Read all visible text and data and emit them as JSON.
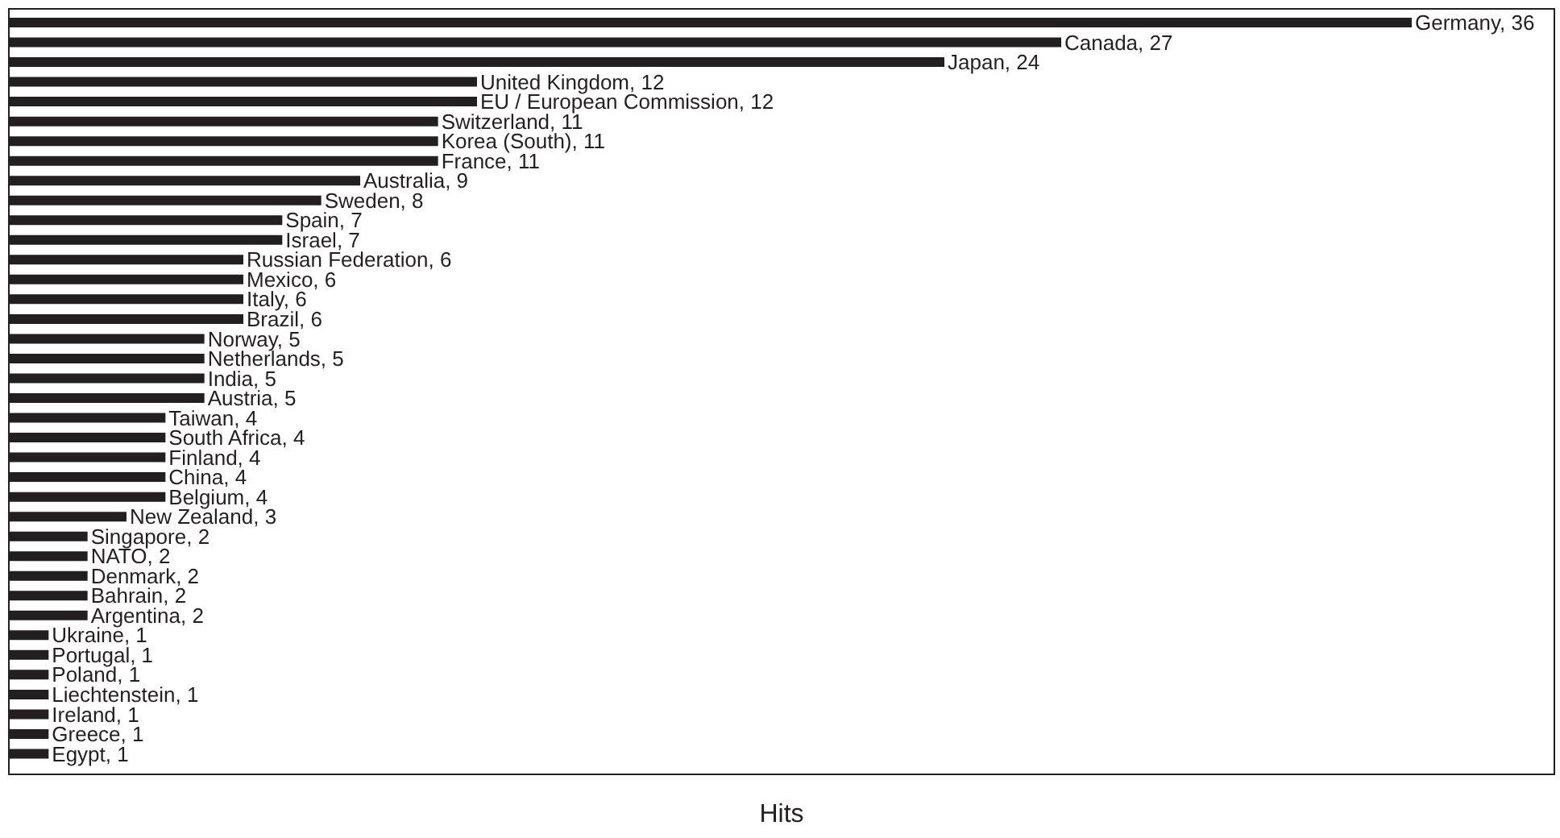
{
  "chart_data": {
    "type": "bar",
    "orientation": "horizontal",
    "xlabel": "Hits",
    "tick_labels": false,
    "categories": [
      null,
      null,
      null,
      null,
      null,
      null,
      null,
      null,
      null,
      null,
      null,
      null,
      null,
      null,
      null,
      null,
      null,
      null,
      null,
      null,
      null,
      null,
      null,
      null,
      null,
      null,
      null,
      null,
      null,
      null,
      null,
      null,
      null,
      null,
      null,
      null,
      null,
      null
    ],
    "values": [
      36,
      27,
      24,
      12,
      12,
      11,
      11,
      11,
      9,
      8,
      7,
      7,
      6,
      6,
      6,
      6,
      5,
      5,
      5,
      5,
      4,
      4,
      4,
      4,
      4,
      3,
      2,
      2,
      2,
      2,
      2,
      1,
      1,
      1,
      1,
      1,
      1,
      1
    ],
    "value_labels": [
      "Germany, 36",
      "Canada, 27",
      "Japan, 24",
      "United Kingdom, 12",
      "EU / European Commission, 12",
      "Switzerland, 11",
      "Korea (South), 11",
      "France, 11",
      "Australia, 9",
      "Sweden, 8",
      "Spain, 7",
      "Israel, 7",
      "Russian Federation, 6",
      "Mexico, 6",
      "Italy, 6",
      "Brazil, 6",
      "Norway, 5",
      "Netherlands, 5",
      "India, 5",
      "Austria, 5",
      "Taiwan, 4",
      "South Africa, 4",
      "Finland, 4",
      "China, 4",
      "Belgium, 4",
      "New Zealand, 3",
      "Singapore, 2",
      "NATO, 2",
      "Denmark, 2",
      "Bahrain, 2",
      "Argentina, 2",
      "Ukraine, 1",
      "Portugal, 1",
      "Poland, 1",
      "Liechtenstein, 1",
      "Ireland, 1",
      "Greece, 1",
      "Egypt, 1"
    ],
    "color": "#231f20"
  }
}
